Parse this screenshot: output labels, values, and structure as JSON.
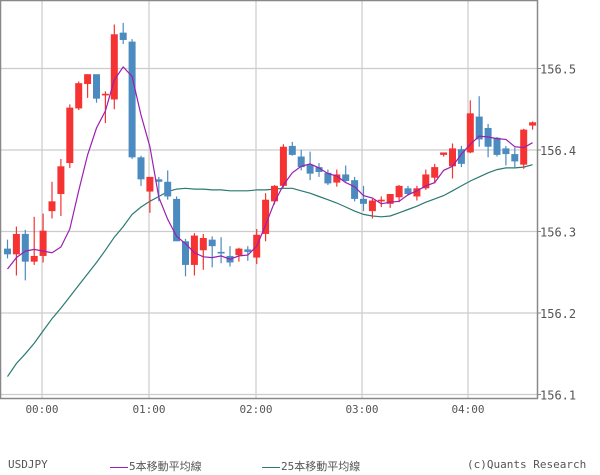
{
  "chart_data": {
    "type": "candlestick",
    "symbol": "USDJPY",
    "title": "",
    "xlabel": "",
    "ylabel": "",
    "ylim": [
      156.096,
      156.584
    ],
    "yticks": [
      156.1,
      156.2,
      156.3,
      156.4,
      156.5
    ],
    "ytick_labels": [
      "156.1",
      "156.2",
      "156.3",
      "156.4",
      "156.5"
    ],
    "xtick_labels": [
      "00:00",
      "01:00",
      "02:00",
      "03:00",
      "04:00"
    ],
    "grid": true,
    "bar_interval_minutes": 5,
    "colors": {
      "up": "#f53333",
      "down": "#4b8bbf",
      "ma5": "#9b1fb0",
      "ma25": "#2a7a72",
      "grid": "#cccccc",
      "frame": "#888888"
    },
    "candles": [
      {
        "o": 156.279,
        "h": 156.29,
        "l": 156.267,
        "c": 156.272
      },
      {
        "o": 156.272,
        "h": 156.306,
        "l": 156.246,
        "c": 156.297
      },
      {
        "o": 156.297,
        "h": 156.302,
        "l": 156.24,
        "c": 156.263
      },
      {
        "o": 156.263,
        "h": 156.318,
        "l": 156.259,
        "c": 156.27
      },
      {
        "o": 156.27,
        "h": 156.322,
        "l": 156.262,
        "c": 156.301
      },
      {
        "o": 156.325,
        "h": 156.361,
        "l": 156.316,
        "c": 156.337
      },
      {
        "o": 156.346,
        "h": 156.389,
        "l": 156.319,
        "c": 156.38
      },
      {
        "o": 156.384,
        "h": 156.456,
        "l": 156.378,
        "c": 156.452
      },
      {
        "o": 156.451,
        "h": 156.484,
        "l": 156.449,
        "c": 156.482
      },
      {
        "o": 156.481,
        "h": 156.493,
        "l": 156.464,
        "c": 156.493
      },
      {
        "o": 156.493,
        "h": 156.492,
        "l": 156.458,
        "c": 156.463
      },
      {
        "o": 156.467,
        "h": 156.472,
        "l": 156.433,
        "c": 156.469
      },
      {
        "o": 156.462,
        "h": 156.554,
        "l": 156.45,
        "c": 156.542
      },
      {
        "o": 156.544,
        "h": 156.556,
        "l": 156.53,
        "c": 156.535
      },
      {
        "o": 156.533,
        "h": 156.536,
        "l": 156.389,
        "c": 156.391
      },
      {
        "o": 156.391,
        "h": 156.393,
        "l": 156.356,
        "c": 156.364
      },
      {
        "o": 156.349,
        "h": 156.367,
        "l": 156.323,
        "c": 156.367
      },
      {
        "o": 156.364,
        "h": 156.367,
        "l": 156.337,
        "c": 156.361
      },
      {
        "o": 156.361,
        "h": 156.375,
        "l": 156.339,
        "c": 156.343
      },
      {
        "o": 156.34,
        "h": 156.343,
        "l": 156.289,
        "c": 156.288
      },
      {
        "o": 156.288,
        "h": 156.291,
        "l": 156.245,
        "c": 156.259
      },
      {
        "o": 156.259,
        "h": 156.298,
        "l": 156.246,
        "c": 156.295
      },
      {
        "o": 156.277,
        "h": 156.297,
        "l": 156.253,
        "c": 156.292
      },
      {
        "o": 156.29,
        "h": 156.294,
        "l": 156.256,
        "c": 156.282
      },
      {
        "o": 156.275,
        "h": 156.293,
        "l": 156.261,
        "c": 156.273
      },
      {
        "o": 156.27,
        "h": 156.282,
        "l": 156.257,
        "c": 156.262
      },
      {
        "o": 156.271,
        "h": 156.28,
        "l": 156.263,
        "c": 156.279
      },
      {
        "o": 156.278,
        "h": 156.282,
        "l": 156.264,
        "c": 156.275
      },
      {
        "o": 156.268,
        "h": 156.303,
        "l": 156.26,
        "c": 156.296
      },
      {
        "o": 156.297,
        "h": 156.347,
        "l": 156.288,
        "c": 156.339
      },
      {
        "o": 156.337,
        "h": 156.357,
        "l": 156.333,
        "c": 156.356
      },
      {
        "o": 156.356,
        "h": 156.407,
        "l": 156.354,
        "c": 156.404
      },
      {
        "o": 156.405,
        "h": 156.41,
        "l": 156.393,
        "c": 156.394
      },
      {
        "o": 156.392,
        "h": 156.4,
        "l": 156.375,
        "c": 156.379
      },
      {
        "o": 156.382,
        "h": 156.398,
        "l": 156.363,
        "c": 156.371
      },
      {
        "o": 156.379,
        "h": 156.384,
        "l": 156.367,
        "c": 156.373
      },
      {
        "o": 156.372,
        "h": 156.376,
        "l": 156.357,
        "c": 156.359
      },
      {
        "o": 156.36,
        "h": 156.376,
        "l": 156.355,
        "c": 156.37
      },
      {
        "o": 156.37,
        "h": 156.381,
        "l": 156.361,
        "c": 156.362
      },
      {
        "o": 156.363,
        "h": 156.367,
        "l": 156.337,
        "c": 156.34
      },
      {
        "o": 156.34,
        "h": 156.356,
        "l": 156.325,
        "c": 156.334
      },
      {
        "o": 156.325,
        "h": 156.34,
        "l": 156.316,
        "c": 156.338
      },
      {
        "o": 156.337,
        "h": 156.343,
        "l": 156.33,
        "c": 156.339
      },
      {
        "o": 156.334,
        "h": 156.346,
        "l": 156.329,
        "c": 156.346
      },
      {
        "o": 156.342,
        "h": 156.357,
        "l": 156.336,
        "c": 156.356
      },
      {
        "o": 156.353,
        "h": 156.356,
        "l": 156.344,
        "c": 156.346
      },
      {
        "o": 156.343,
        "h": 156.356,
        "l": 156.338,
        "c": 156.353
      },
      {
        "o": 156.353,
        "h": 156.376,
        "l": 156.351,
        "c": 156.37
      },
      {
        "o": 156.366,
        "h": 156.383,
        "l": 156.359,
        "c": 156.379
      },
      {
        "o": 156.394,
        "h": 156.396,
        "l": 156.392,
        "c": 156.397
      },
      {
        "o": 156.38,
        "h": 156.408,
        "l": 156.365,
        "c": 156.402
      },
      {
        "o": 156.401,
        "h": 156.405,
        "l": 156.379,
        "c": 156.383
      },
      {
        "o": 156.397,
        "h": 156.461,
        "l": 156.396,
        "c": 156.445
      },
      {
        "o": 156.441,
        "h": 156.466,
        "l": 156.404,
        "c": 156.413
      },
      {
        "o": 156.427,
        "h": 156.432,
        "l": 156.391,
        "c": 156.404
      },
      {
        "o": 156.415,
        "h": 156.416,
        "l": 156.392,
        "c": 156.394
      },
      {
        "o": 156.402,
        "h": 156.405,
        "l": 156.381,
        "c": 156.395
      },
      {
        "o": 156.395,
        "h": 156.403,
        "l": 156.378,
        "c": 156.386
      },
      {
        "o": 156.382,
        "h": 156.426,
        "l": 156.377,
        "c": 156.425
      },
      {
        "o": 156.43,
        "h": 156.435,
        "l": 156.425,
        "c": 156.434
      }
    ],
    "ma5": [
      156.254,
      156.268,
      156.276,
      156.278,
      156.276,
      156.274,
      156.281,
      156.303,
      156.35,
      156.394,
      156.427,
      156.448,
      156.486,
      156.502,
      156.49,
      156.443,
      156.404,
      156.342,
      156.315,
      156.294,
      156.285,
      156.274,
      156.269,
      156.268,
      156.27,
      156.266,
      156.27,
      156.271,
      156.282,
      156.308,
      156.336,
      156.357,
      156.372,
      156.38,
      156.383,
      156.378,
      156.371,
      156.368,
      156.36,
      156.355,
      156.344,
      156.341,
      156.334,
      156.336,
      156.337,
      156.345,
      156.35,
      156.356,
      156.36,
      156.375,
      156.38,
      156.395,
      156.407,
      156.417,
      156.416,
      156.414,
      156.413,
      156.404,
      156.403,
      156.409
    ],
    "ma25": [
      156.122,
      156.138,
      156.15,
      156.163,
      156.178,
      156.193,
      156.206,
      156.22,
      156.234,
      156.248,
      156.262,
      156.277,
      156.293,
      156.306,
      156.321,
      156.33,
      156.337,
      156.343,
      156.349,
      156.352,
      156.353,
      156.352,
      156.352,
      156.351,
      156.351,
      156.35,
      156.35,
      156.35,
      156.351,
      156.351,
      156.352,
      156.353,
      156.353,
      156.35,
      156.347,
      156.343,
      156.339,
      156.335,
      156.33,
      156.325,
      156.321,
      156.319,
      156.318,
      156.319,
      156.323,
      156.327,
      156.331,
      156.336,
      156.34,
      156.344,
      156.35,
      156.356,
      156.362,
      156.367,
      156.372,
      156.376,
      156.378,
      156.378,
      156.379,
      156.382
    ]
  },
  "legend": {
    "symbol": "USDJPY",
    "ma5_label": "5本移動平均線",
    "ma25_label": "25本移動平均線",
    "credit": "(c)Quants Research"
  }
}
